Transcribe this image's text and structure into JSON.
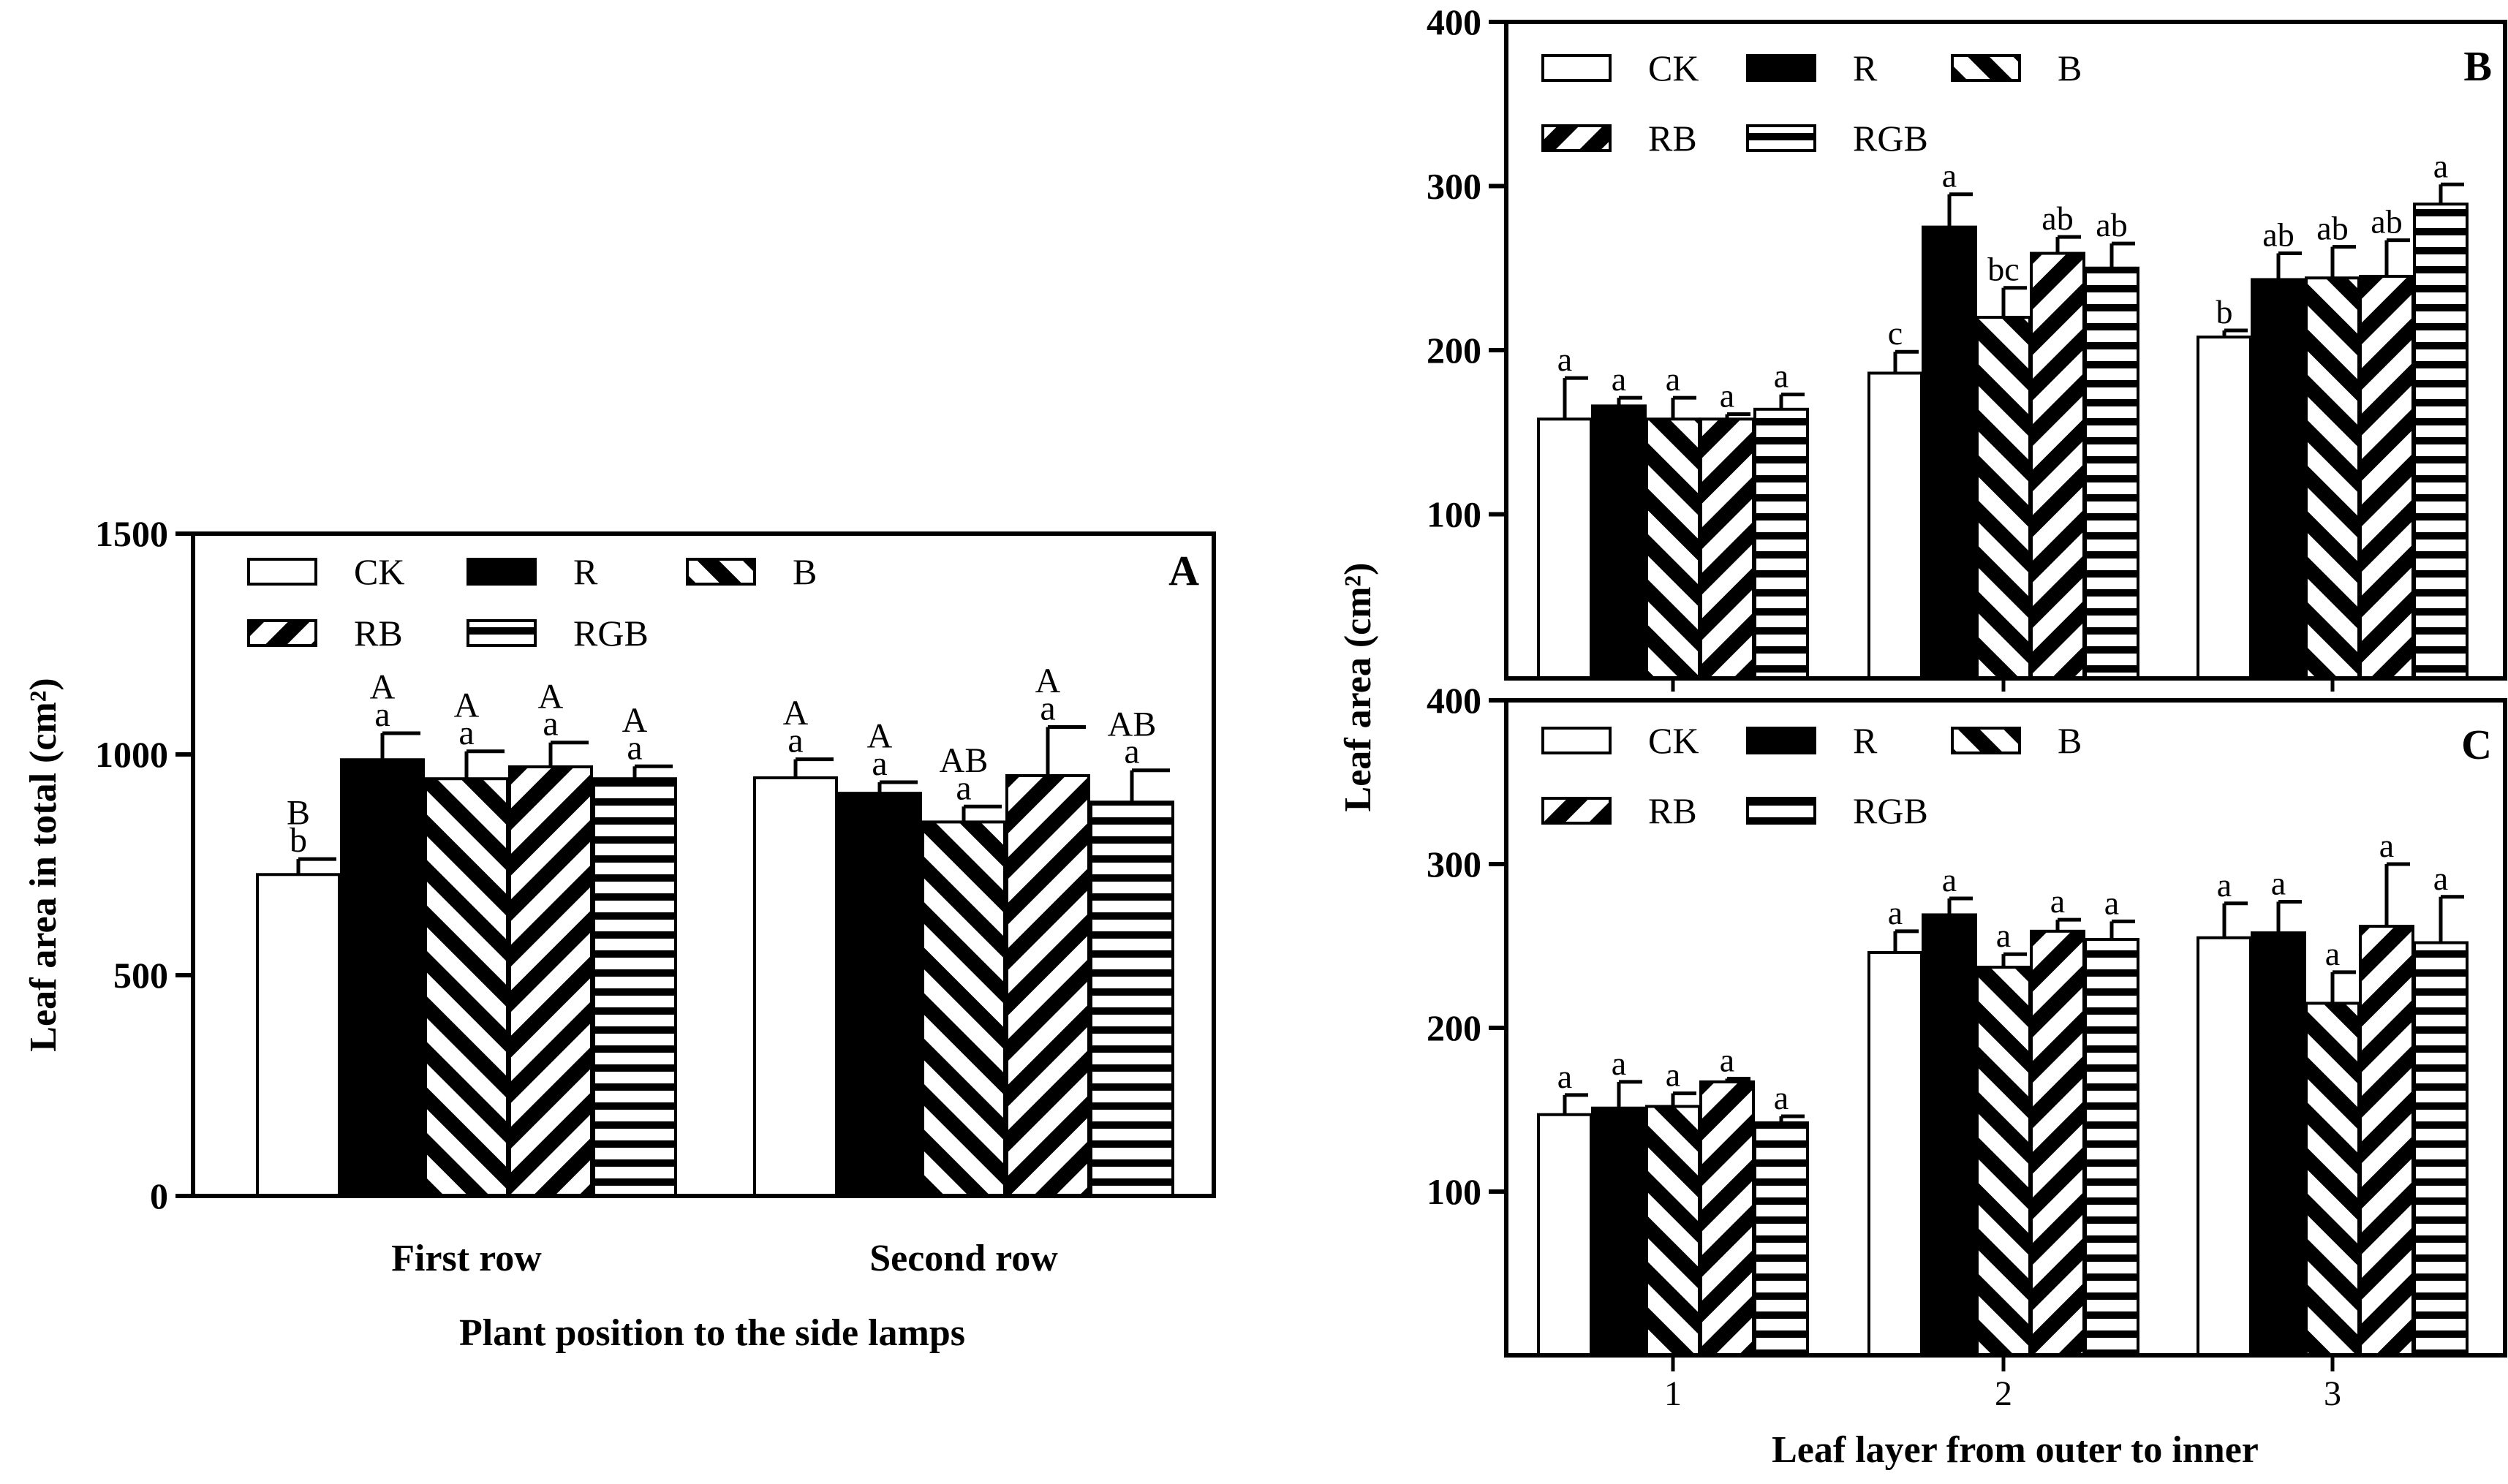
{
  "figure": {
    "panel_a_xlabel": "Plant position to the side lamps",
    "panels_bc_ylabel": "Leaf area (cm²)",
    "panels_bc_xlabel": "Leaf layer from outer to inner"
  },
  "colors": {
    "ink": "#000000",
    "paper": "#ffffff"
  },
  "legend": [
    {
      "name": "CK",
      "pattern": "white"
    },
    {
      "name": "R",
      "pattern": "black"
    },
    {
      "name": "B",
      "pattern": "diag-up"
    },
    {
      "name": "RB",
      "pattern": "diag-down"
    },
    {
      "name": "RGB",
      "pattern": "horizontal"
    }
  ],
  "chart_data": [
    {
      "panel": "A",
      "type": "bar",
      "title": "A",
      "xlabel": "Plant position to the side lamps",
      "ylabel": "Leaf area in total (cm²)",
      "ylim": [
        0,
        1500
      ],
      "yticks": [
        "0",
        "500",
        "1000",
        "1500"
      ],
      "categories": [
        "First row",
        "Second row"
      ],
      "legend_position": "top-left",
      "series": [
        {
          "name": "CK",
          "values": [
            728,
            947
          ],
          "errors": [
            35,
            42
          ],
          "letters": [
            [
              "B",
              "b"
            ],
            [
              "A",
              "a"
            ]
          ]
        },
        {
          "name": "R",
          "values": [
            988,
            912
          ],
          "errors": [
            60,
            25
          ],
          "letters": [
            [
              "A",
              "a"
            ],
            [
              "A",
              "a"
            ]
          ]
        },
        {
          "name": "B",
          "values": [
            945,
            847
          ],
          "errors": [
            62,
            35
          ],
          "letters": [
            [
              "A",
              "a"
            ],
            [
              "AB",
              "a"
            ]
          ]
        },
        {
          "name": "RB",
          "values": [
            972,
            952
          ],
          "errors": [
            55,
            110
          ],
          "letters": [
            [
              "A",
              "a"
            ],
            [
              "A",
              "a"
            ]
          ]
        },
        {
          "name": "RGB",
          "values": [
            945,
            892
          ],
          "errors": [
            28,
            72
          ],
          "letters": [
            [
              "A",
              "a"
            ],
            [
              "AB",
              "a"
            ]
          ]
        }
      ]
    },
    {
      "panel": "B",
      "type": "bar",
      "title": "B",
      "xlabel": "",
      "ylabel": "Leaf area (cm²)",
      "ylim": [
        0,
        400
      ],
      "yticks": [
        "100",
        "200",
        "300",
        "400"
      ],
      "categories": [
        "1",
        "2",
        "3"
      ],
      "legend_position": "top-left",
      "series": [
        {
          "name": "CK",
          "values": [
            158,
            186,
            208
          ],
          "errors": [
            25,
            13,
            4
          ],
          "letters": [
            "a",
            "c",
            "b"
          ]
        },
        {
          "name": "R",
          "values": [
            166,
            275,
            243
          ],
          "errors": [
            5,
            20,
            16
          ],
          "letters": [
            "a",
            "a",
            "ab"
          ]
        },
        {
          "name": "B",
          "values": [
            158,
            220,
            244
          ],
          "errors": [
            13,
            18,
            19
          ],
          "letters": [
            "a",
            "bc",
            "ab"
          ]
        },
        {
          "name": "RB",
          "values": [
            158,
            259,
            245
          ],
          "errors": [
            3,
            10,
            22
          ],
          "letters": [
            "a",
            "ab",
            "ab"
          ]
        },
        {
          "name": "RGB",
          "values": [
            164,
            250,
            289
          ],
          "errors": [
            9,
            15,
            12
          ],
          "letters": [
            "a",
            "ab",
            "a"
          ]
        }
      ]
    },
    {
      "panel": "C",
      "type": "bar",
      "title": "C",
      "xlabel": "Leaf layer from outer to inner",
      "ylabel": "Leaf area (cm²)",
      "ylim": [
        0,
        400
      ],
      "yticks": [
        "100",
        "200",
        "300",
        "400"
      ],
      "categories": [
        "1",
        "2",
        "3"
      ],
      "legend_position": "top-left",
      "series": [
        {
          "name": "CK",
          "values": [
            147,
            246,
            255
          ],
          "errors": [
            12,
            13,
            21
          ],
          "letters": [
            "a",
            "a",
            "a"
          ]
        },
        {
          "name": "R",
          "values": [
            151,
            269,
            258
          ],
          "errors": [
            16,
            10,
            19
          ],
          "letters": [
            "a",
            "a",
            "a"
          ]
        },
        {
          "name": "B",
          "values": [
            152,
            237,
            215
          ],
          "errors": [
            8,
            8,
            19
          ],
          "letters": [
            "a",
            "a",
            "a"
          ]
        },
        {
          "name": "RB",
          "values": [
            167,
            259,
            262
          ],
          "errors": [
            2,
            7,
            38
          ],
          "letters": [
            "a",
            "a",
            "a"
          ]
        },
        {
          "name": "RGB",
          "values": [
            142,
            254,
            252
          ],
          "errors": [
            4,
            11,
            28
          ],
          "letters": [
            "a",
            "a",
            "a"
          ]
        }
      ]
    }
  ]
}
